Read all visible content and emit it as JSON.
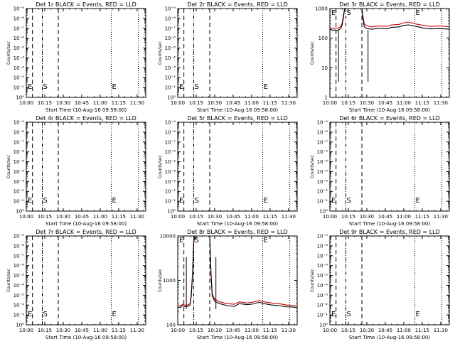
{
  "chart_data": [
    {
      "type": "line",
      "panel": 1,
      "title": "Det 1r BLACK = Events, RED = LLD",
      "xlabel": "Start Time (10-Aug-16 09:58:00)",
      "ylabel": "Counts/sec",
      "yscale": "log",
      "ylim": [
        1.0,
        1e-09
      ],
      "ytick_labels": [
        "10⁰",
        "10⁻¹",
        "10⁻²",
        "10⁻³",
        "10⁻⁴",
        "10⁻⁵",
        "10⁻⁶",
        "10⁻⁷",
        "10⁻⁸",
        "10⁻⁹"
      ],
      "xlim": [
        "10:00",
        "11:37"
      ],
      "xtick_labels": [
        "10:00",
        "10:15",
        "10:30",
        "10:45",
        "11:00",
        "11:15",
        "11:30"
      ],
      "marker_labels": [
        "E",
        "S",
        "E"
      ],
      "dashed_lines": [
        "10:05",
        "10:26"
      ],
      "dashdot_lines": [
        "10:13"
      ],
      "dotted_lines": [
        "11:09",
        "11:31"
      ],
      "series": []
    },
    {
      "type": "line",
      "panel": 2,
      "title": "Det 2r BLACK = Events, RED = LLD",
      "xlabel": "Start Time (10-Aug-16 09:58:00)",
      "ylabel": "Counts/sec",
      "yscale": "log",
      "ylim": [
        1.0,
        1e-09
      ],
      "ytick_labels": [
        "10⁰",
        "10⁻¹",
        "10⁻²",
        "10⁻³",
        "10⁻⁴",
        "10⁻⁵",
        "10⁻⁶",
        "10⁻⁷",
        "10⁻⁸",
        "10⁻⁹"
      ],
      "xlim": [
        "10:00",
        "11:37"
      ],
      "xtick_labels": [
        "10:00",
        "10:15",
        "10:30",
        "10:45",
        "11:00",
        "11:15",
        "11:30"
      ],
      "marker_labels": [
        "E",
        "S",
        "E"
      ],
      "dashed_lines": [
        "10:05",
        "10:26"
      ],
      "dashdot_lines": [
        "10:13"
      ],
      "dotted_lines": [
        "11:09",
        "11:31"
      ],
      "series": []
    },
    {
      "type": "line",
      "panel": 3,
      "title": "Det 3r BLACK = Events, RED = LLD",
      "xlabel": "Start Time (10-Aug-16 09:58:00)",
      "ylabel": "Counts/sec",
      "yscale": "log",
      "ylim": [
        1,
        1000
      ],
      "ytick_labels": [
        "1",
        "10",
        "100",
        "1000"
      ],
      "xlim": [
        "10:00",
        "11:37"
      ],
      "xtick_labels": [
        "10:00",
        "10:15",
        "10:30",
        "10:45",
        "11:00",
        "11:15",
        "11:30"
      ],
      "marker_labels": [
        "E",
        "S",
        "E"
      ],
      "dashed_lines": [
        "10:05",
        "10:26"
      ],
      "dashdot_lines": [
        "10:13"
      ],
      "dotted_lines": [
        "11:09",
        "11:31"
      ],
      "series": [
        {
          "name": "LLD",
          "color": "#cc0000",
          "x": [
            0,
            2,
            4,
            6,
            8,
            9,
            10,
            11,
            12,
            13,
            14,
            15,
            20,
            22,
            24,
            26,
            27,
            28,
            30,
            34,
            40,
            46,
            50,
            56,
            60,
            64,
            70,
            76,
            82,
            88,
            94,
            97
          ],
          "y": [
            230,
            210,
            220,
            215,
            230,
            260,
            320,
            600,
            1000,
            1000,
            1000,
            1000,
            1000,
            1000,
            1000,
            1000,
            500,
            300,
            260,
            240,
            260,
            250,
            280,
            290,
            330,
            350,
            300,
            270,
            250,
            260,
            250,
            240
          ]
        },
        {
          "name": "Events",
          "color": "#000000",
          "x": [
            0,
            2,
            4,
            6,
            8,
            9,
            10,
            11,
            12,
            13,
            14,
            15,
            20,
            22,
            24,
            26,
            27,
            28,
            30,
            34,
            40,
            46,
            50,
            56,
            60,
            64,
            70,
            76,
            82,
            88,
            94,
            97
          ],
          "y": [
            200,
            185,
            190,
            180,
            200,
            220,
            280,
            500,
            1000,
            1000,
            1000,
            1000,
            1000,
            1000,
            1000,
            1000,
            400,
            240,
            210,
            200,
            215,
            205,
            230,
            240,
            270,
            280,
            250,
            220,
            205,
            210,
            205,
            200
          ]
        }
      ]
    },
    {
      "type": "line",
      "panel": 4,
      "title": "Det 4r BLACK = Events, RED = LLD",
      "xlabel": "Start Time (10-Aug-16 09:58:00)",
      "ylabel": "Counts/sec",
      "yscale": "log",
      "ylim": [
        1.0,
        1e-09
      ],
      "ytick_labels": [
        "10⁰",
        "10⁻¹",
        "10⁻²",
        "10⁻³",
        "10⁻⁴",
        "10⁻⁵",
        "10⁻⁶",
        "10⁻⁷",
        "10⁻⁸",
        "10⁻⁹"
      ],
      "xlim": [
        "10:00",
        "11:37"
      ],
      "xtick_labels": [
        "10:00",
        "10:15",
        "10:30",
        "10:45",
        "11:00",
        "11:15",
        "11:30"
      ],
      "marker_labels": [
        "E",
        "S",
        "E"
      ],
      "dashed_lines": [
        "10:05",
        "10:26"
      ],
      "dashdot_lines": [
        "10:13"
      ],
      "dotted_lines": [
        "11:09",
        "11:31"
      ],
      "series": []
    },
    {
      "type": "line",
      "panel": 5,
      "title": "Det 5r BLACK = Events, RED = LLD",
      "xlabel": "Start Time (10-Aug-16 09:58:00)",
      "ylabel": "Counts/sec",
      "yscale": "log",
      "ylim": [
        1.0,
        1e-09
      ],
      "ytick_labels": [
        "10⁰",
        "10⁻¹",
        "10⁻²",
        "10⁻³",
        "10⁻⁴",
        "10⁻⁵",
        "10⁻⁶",
        "10⁻⁷",
        "10⁻⁸",
        "10⁻⁹"
      ],
      "xlim": [
        "10:00",
        "11:37"
      ],
      "xtick_labels": [
        "10:00",
        "10:15",
        "10:30",
        "10:45",
        "11:00",
        "11:15",
        "11:30"
      ],
      "marker_labels": [
        "E",
        "S",
        "E"
      ],
      "dashed_lines": [
        "10:05",
        "10:26"
      ],
      "dashdot_lines": [
        "10:13"
      ],
      "dotted_lines": [
        "11:09",
        "11:31"
      ],
      "series": []
    },
    {
      "type": "line",
      "panel": 6,
      "title": "Det 6r BLACK = Events, RED = LLD",
      "xlabel": "Start Time (10-Aug-16 09:58:00)",
      "ylabel": "Counts/sec",
      "yscale": "log",
      "ylim": [
        1.0,
        1e-09
      ],
      "ytick_labels": [
        "10⁰",
        "10⁻¹",
        "10⁻²",
        "10⁻³",
        "10⁻⁴",
        "10⁻⁵",
        "10⁻⁶",
        "10⁻⁷",
        "10⁻⁸",
        "10⁻⁹"
      ],
      "xlim": [
        "10:00",
        "11:37"
      ],
      "xtick_labels": [
        "10:00",
        "10:15",
        "10:30",
        "10:45",
        "11:00",
        "11:15",
        "11:30"
      ],
      "marker_labels": [
        "E",
        "S",
        "E"
      ],
      "dashed_lines": [
        "10:05",
        "10:26"
      ],
      "dashdot_lines": [
        "10:13"
      ],
      "dotted_lines": [
        "11:09",
        "11:31"
      ],
      "series": []
    },
    {
      "type": "line",
      "panel": 7,
      "title": "Det 7r BLACK = Events, RED = LLD",
      "xlabel": "Start Time (10-Aug-16 09:58:00)",
      "ylabel": "Counts/sec",
      "yscale": "log",
      "ylim": [
        1.0,
        1e-09
      ],
      "ytick_labels": [
        "10⁰",
        "10⁻¹",
        "10⁻²",
        "10⁻³",
        "10⁻⁴",
        "10⁻⁵",
        "10⁻⁶",
        "10⁻⁷",
        "10⁻⁸",
        "10⁻⁹"
      ],
      "xlim": [
        "10:00",
        "11:37"
      ],
      "xtick_labels": [
        "10:00",
        "10:15",
        "10:30",
        "10:45",
        "11:00",
        "11:15",
        "11:30"
      ],
      "marker_labels": [
        "E",
        "S",
        "E"
      ],
      "dashed_lines": [
        "10:05",
        "10:26"
      ],
      "dashdot_lines": [
        "10:13"
      ],
      "dotted_lines": [
        "11:09",
        "11:31"
      ],
      "series": []
    },
    {
      "type": "line",
      "panel": 8,
      "title": "Det 8r BLACK = Events, RED = LLD",
      "xlabel": "Start Time (10-Aug-16 09:58:00)",
      "ylabel": "Counts/sec",
      "yscale": "log",
      "ylim": [
        100,
        10000
      ],
      "ytick_labels": [
        "100",
        "1000",
        "10000"
      ],
      "xlim": [
        "10:00",
        "11:37"
      ],
      "xtick_labels": [
        "10:00",
        "10:15",
        "10:30",
        "10:45",
        "11:00",
        "11:15",
        "11:30"
      ],
      "marker_labels": [
        "E",
        "S",
        "E"
      ],
      "dashed_lines": [
        "10:05",
        "10:26"
      ],
      "dashdot_lines": [
        "10:13"
      ],
      "dotted_lines": [
        "11:09",
        "11:31"
      ],
      "series": [
        {
          "name": "LLD",
          "color": "#cc0000",
          "x": [
            0,
            2,
            4,
            6,
            8,
            10,
            11,
            12,
            13,
            14,
            16,
            22,
            24,
            26,
            27,
            28,
            30,
            34,
            40,
            46,
            50,
            56,
            60,
            66,
            70,
            76,
            82,
            88,
            94,
            97
          ],
          "y": [
            270,
            265,
            290,
            275,
            280,
            300,
            500,
            1500,
            8000,
            10000,
            10000,
            10000,
            10000,
            10000,
            1500,
            500,
            380,
            330,
            300,
            290,
            330,
            310,
            320,
            350,
            330,
            310,
            300,
            280,
            270,
            265
          ]
        },
        {
          "name": "Events",
          "color": "#000000",
          "x": [
            0,
            2,
            4,
            6,
            8,
            10,
            11,
            12,
            13,
            14,
            16,
            22,
            24,
            26,
            27,
            28,
            30,
            34,
            40,
            46,
            50,
            56,
            60,
            66,
            70,
            76,
            82,
            88,
            94,
            97
          ],
          "y": [
            250,
            245,
            270,
            255,
            260,
            280,
            450,
            1300,
            7000,
            10000,
            10000,
            10000,
            10000,
            10000,
            1300,
            450,
            340,
            300,
            270,
            260,
            300,
            285,
            290,
            320,
            300,
            280,
            270,
            255,
            250,
            245
          ]
        }
      ]
    },
    {
      "type": "line",
      "panel": 9,
      "title": "Det 9r BLACK = Events, RED = LLD",
      "xlabel": "Start Time (10-Aug-16 09:58:00)",
      "ylabel": "Counts/sec",
      "yscale": "log",
      "ylim": [
        1.0,
        1e-09
      ],
      "ytick_labels": [
        "10⁰",
        "10⁻¹",
        "10⁻²",
        "10⁻³",
        "10⁻⁴",
        "10⁻⁵",
        "10⁻⁶",
        "10⁻⁷",
        "10⁻⁸",
        "10⁻⁹"
      ],
      "xlim": [
        "10:00",
        "11:37"
      ],
      "xtick_labels": [
        "10:00",
        "10:15",
        "10:30",
        "10:45",
        "11:00",
        "11:15",
        "11:30"
      ],
      "marker_labels": [
        "E",
        "S",
        "E"
      ],
      "dashed_lines": [
        "10:05",
        "10:26"
      ],
      "dashdot_lines": [
        "10:13"
      ],
      "dotted_lines": [
        "11:09",
        "11:31"
      ],
      "series": []
    }
  ]
}
